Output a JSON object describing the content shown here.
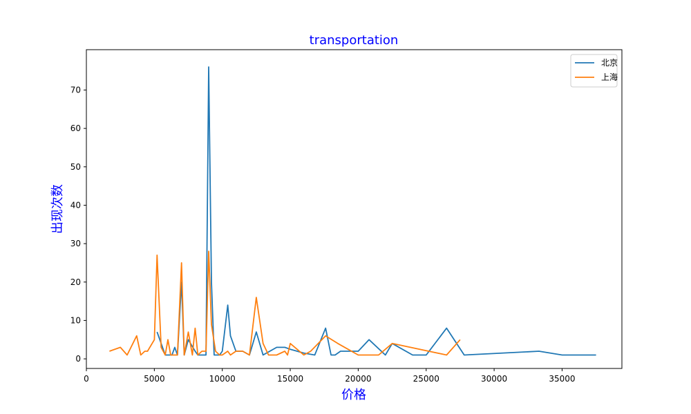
{
  "chart_data": {
    "type": "line",
    "title": "transportation",
    "xlabel": "价格",
    "ylabel": "出现次数",
    "title_color": "#0000ff",
    "label_color": "#0000ff",
    "xlim": [
      0,
      39400
    ],
    "ylim": [
      -2.5,
      80.5
    ],
    "xticks": [
      0,
      5000,
      10000,
      15000,
      20000,
      25000,
      30000,
      35000
    ],
    "yticks": [
      0,
      10,
      20,
      30,
      40,
      50,
      60,
      70
    ],
    "legend_position": "top-right",
    "grid": false,
    "series": [
      {
        "name": "北京",
        "color": "#1f77b4",
        "points": [
          [
            5200,
            7
          ],
          [
            5600,
            3
          ],
          [
            5800,
            1
          ],
          [
            6000,
            1
          ],
          [
            6300,
            1
          ],
          [
            6500,
            3
          ],
          [
            6700,
            1
          ],
          [
            7000,
            20
          ],
          [
            7200,
            1
          ],
          [
            7500,
            5
          ],
          [
            8000,
            2
          ],
          [
            8200,
            1
          ],
          [
            8500,
            1
          ],
          [
            8800,
            1
          ],
          [
            9000,
            76
          ],
          [
            9200,
            20
          ],
          [
            9400,
            1
          ],
          [
            9600,
            1
          ],
          [
            9800,
            1
          ],
          [
            10000,
            2
          ],
          [
            10400,
            14
          ],
          [
            10600,
            6
          ],
          [
            11000,
            2
          ],
          [
            11500,
            2
          ],
          [
            12000,
            1
          ],
          [
            12500,
            7
          ],
          [
            13000,
            1
          ],
          [
            14000,
            3
          ],
          [
            14600,
            3
          ],
          [
            15000,
            2.5
          ],
          [
            16000,
            1.5
          ],
          [
            16800,
            1
          ],
          [
            17600,
            8
          ],
          [
            18000,
            1
          ],
          [
            18300,
            1
          ],
          [
            18700,
            2
          ],
          [
            19500,
            2
          ],
          [
            20000,
            2
          ],
          [
            20800,
            5
          ],
          [
            22000,
            1
          ],
          [
            22500,
            4
          ],
          [
            24000,
            1
          ],
          [
            25000,
            1
          ],
          [
            26500,
            8
          ],
          [
            27800,
            1
          ],
          [
            33300,
            2
          ],
          [
            35000,
            1
          ],
          [
            37500,
            1
          ]
        ]
      },
      {
        "name": "上海",
        "color": "#ff7f0e",
        "points": [
          [
            1700,
            2
          ],
          [
            2500,
            3
          ],
          [
            3000,
            1
          ],
          [
            3700,
            6
          ],
          [
            4000,
            1
          ],
          [
            4300,
            2
          ],
          [
            4500,
            2
          ],
          [
            5000,
            5
          ],
          [
            5200,
            27
          ],
          [
            5500,
            3
          ],
          [
            5800,
            1
          ],
          [
            6000,
            5
          ],
          [
            6200,
            1
          ],
          [
            6400,
            1
          ],
          [
            6700,
            1
          ],
          [
            7000,
            25
          ],
          [
            7200,
            1
          ],
          [
            7500,
            7
          ],
          [
            7800,
            1
          ],
          [
            8000,
            8
          ],
          [
            8200,
            1
          ],
          [
            8500,
            2
          ],
          [
            8800,
            2
          ],
          [
            9000,
            28
          ],
          [
            9200,
            9
          ],
          [
            9500,
            2
          ],
          [
            9800,
            1
          ],
          [
            10000,
            1
          ],
          [
            10400,
            2
          ],
          [
            10600,
            1
          ],
          [
            11000,
            2
          ],
          [
            11500,
            2
          ],
          [
            12000,
            1
          ],
          [
            12500,
            16
          ],
          [
            13000,
            4
          ],
          [
            13400,
            1
          ],
          [
            14000,
            1
          ],
          [
            14600,
            2
          ],
          [
            14800,
            1
          ],
          [
            15000,
            4
          ],
          [
            16000,
            1
          ],
          [
            16500,
            2
          ],
          [
            17600,
            6
          ],
          [
            18500,
            4
          ],
          [
            20000,
            1
          ],
          [
            21500,
            1
          ],
          [
            22500,
            4
          ],
          [
            26500,
            1
          ],
          [
            27500,
            5
          ]
        ]
      }
    ]
  }
}
